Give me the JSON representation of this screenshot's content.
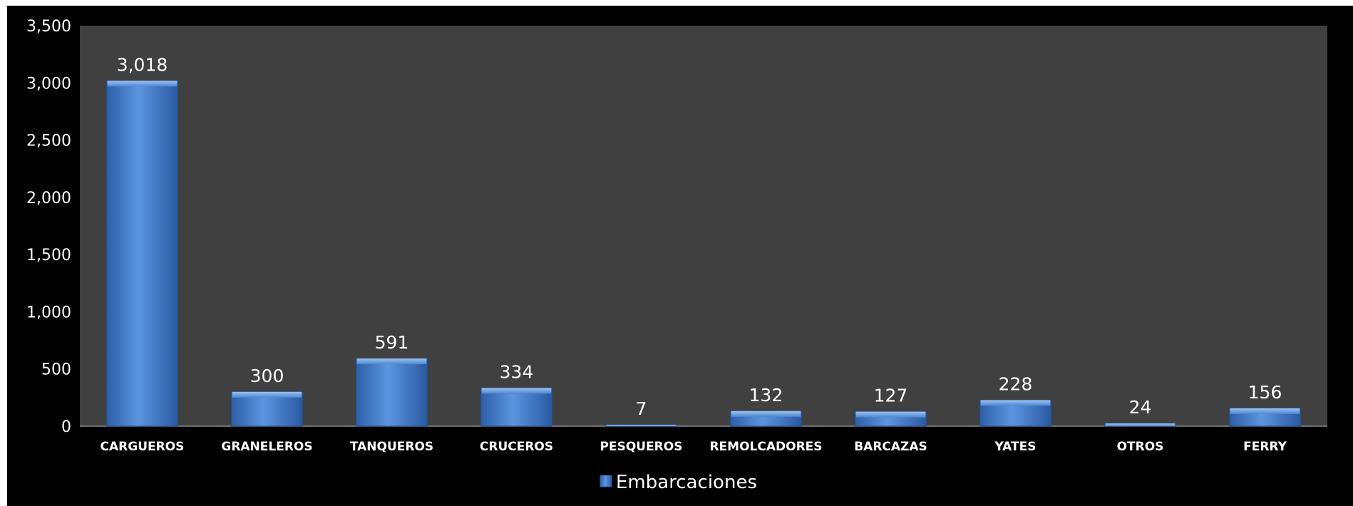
{
  "chart_data": {
    "type": "bar",
    "categories": [
      "CARGUEROS",
      "GRANELEROS",
      "TANQUEROS",
      "CRUCEROS",
      "PESQUEROS",
      "REMOLCADORES",
      "BARCAZAS",
      "YATES",
      "OTROS",
      "FERRY"
    ],
    "series": [
      {
        "name": "Embarcaciones",
        "values": [
          3018,
          300,
          591,
          334,
          7,
          132,
          127,
          228,
          24,
          156
        ],
        "data_labels": [
          "3,018",
          "300",
          "591",
          "334",
          "7",
          "132",
          "127",
          "228",
          "24",
          "156"
        ]
      }
    ],
    "y_ticks": [
      0,
      500,
      1000,
      1500,
      2000,
      2500,
      3000,
      3500
    ],
    "y_tick_labels": [
      "0",
      "500",
      "1,000",
      "1,500",
      "2,000",
      "2,500",
      "3,000",
      "3,500"
    ],
    "ylim": [
      0,
      3500
    ],
    "grid": false,
    "legend": "bottom",
    "colors": {
      "background": "#000000",
      "plot_area": "#404040",
      "bar": "#4a86d4",
      "text": "#ffffff"
    }
  }
}
